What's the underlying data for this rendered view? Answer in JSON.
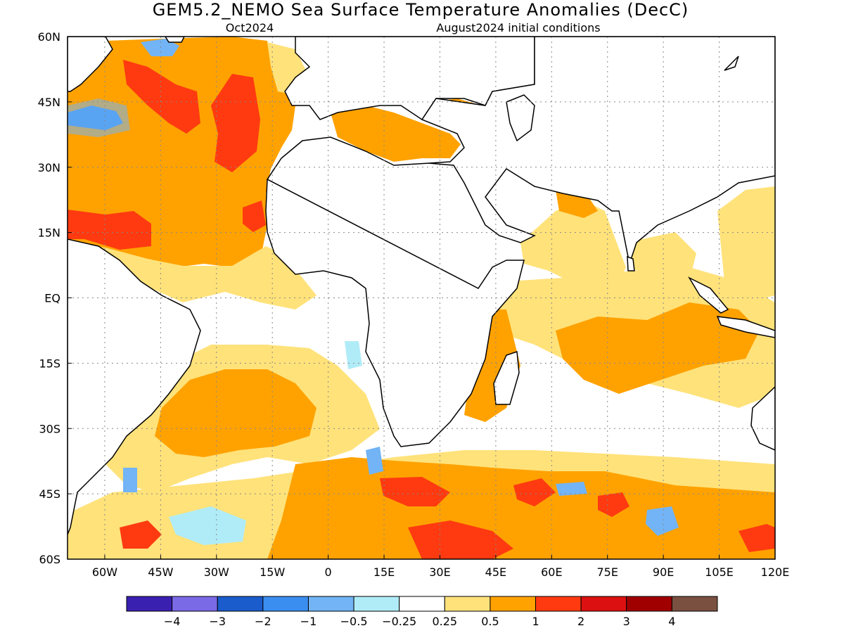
{
  "title": "GEM5.2_NEMO Sea Surface Temperature Anomalies (DecC)",
  "forecast_month": "Oct2024",
  "initial_conditions": "August2024 initial conditions",
  "chart_data": {
    "type": "heatmap",
    "x_ticks": [
      "60W",
      "45W",
      "30W",
      "15W",
      "0",
      "15E",
      "30E",
      "45E",
      "60E",
      "75E",
      "90E",
      "105E",
      "120E"
    ],
    "y_ticks": [
      "60N",
      "45N",
      "30N",
      "15N",
      "EQ",
      "15S",
      "30S",
      "45S",
      "60S"
    ],
    "x_range": [
      -70,
      120
    ],
    "y_range": [
      -60,
      60
    ],
    "grid": "dotted",
    "colorbar": {
      "boundaries": [
        "-4",
        "-3",
        "-2",
        "-1",
        "-0.5",
        "-0.25",
        "0.25",
        "0.5",
        "1",
        "2",
        "3",
        "4"
      ],
      "colors": [
        "#3a20b0",
        "#7a6ae6",
        "#1a5ccc",
        "#3a8ef0",
        "#72b4f5",
        "#b0ecf7",
        "#ffffff",
        "#ffe27a",
        "#ffa200",
        "#ff3a10",
        "#dc1010",
        "#a00000",
        "#7a5040"
      ]
    }
  }
}
